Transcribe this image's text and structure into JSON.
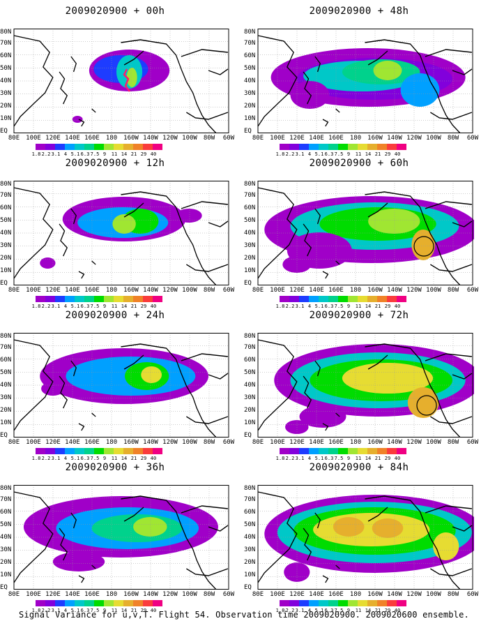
{
  "panels": [
    {
      "title": "2009020900 + 00h"
    },
    {
      "title": "2009020900 + 48h"
    },
    {
      "title": "2009020900 + 12h"
    },
    {
      "title": "2009020900 + 60h"
    },
    {
      "title": "2009020900 + 24h"
    },
    {
      "title": "2009020900 + 72h"
    },
    {
      "title": "2009020900 + 36h"
    },
    {
      "title": "2009020900 + 84h"
    }
  ],
  "lat_labels": [
    "80N",
    "70N",
    "60N",
    "50N",
    "40N",
    "30N",
    "20N",
    "10N",
    "EQ"
  ],
  "lon_labels": [
    "80E",
    "100E",
    "120E",
    "140E",
    "160E",
    "180",
    "160W",
    "140W",
    "120W",
    "100W",
    "80W",
    "60W"
  ],
  "legend": {
    "colors": [
      "#a000c8",
      "#8200dc",
      "#1e3cff",
      "#00a0ff",
      "#00c8c8",
      "#00d28c",
      "#00dc00",
      "#a0e632",
      "#e6dc32",
      "#e6af2d",
      "#f08228",
      "#fa3c3c",
      "#f00082"
    ],
    "labels": [
      "1.8",
      "2.2",
      "3.1",
      "4",
      "5.1",
      "6.3",
      "7.5",
      "9",
      "11",
      "14",
      "21",
      "29",
      "40"
    ]
  },
  "caption": "Signal Variance for u,v,T. Flight 54. Observation time 2009020900. 2009020600 ensemble."
}
